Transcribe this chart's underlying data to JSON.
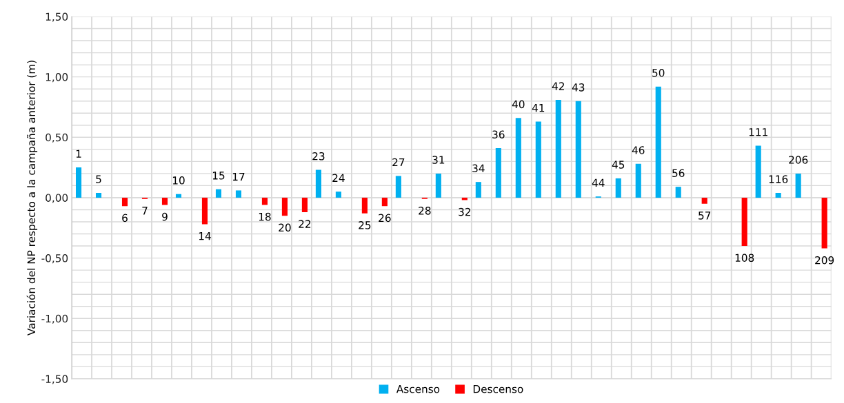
{
  "chart_data": {
    "type": "bar",
    "ylabel": "Variación del NP respecto a la campaña anterior (m)",
    "categories": [
      "1",
      "5",
      "6",
      "7",
      "9",
      "10",
      "14",
      "15",
      "17",
      "18",
      "20",
      "22",
      "23",
      "24",
      "25",
      "26",
      "27",
      "28",
      "31",
      "32",
      "34",
      "36",
      "40",
      "41",
      "42",
      "43",
      "44",
      "45",
      "46",
      "50",
      "56",
      "57",
      null,
      "108",
      "111",
      "116",
      "206",
      "209"
    ],
    "series": [
      {
        "name": "Ascenso",
        "color": "#00b0f0",
        "values": [
          0.25,
          0.04,
          null,
          null,
          null,
          0.03,
          null,
          0.07,
          0.06,
          null,
          null,
          null,
          0.23,
          0.05,
          null,
          null,
          0.18,
          null,
          0.2,
          null,
          0.13,
          0.41,
          0.66,
          0.63,
          0.81,
          0.8,
          0.01,
          0.16,
          0.28,
          0.92,
          0.09,
          null,
          null,
          null,
          0.43,
          0.04,
          0.2,
          null
        ]
      },
      {
        "name": "Descenso",
        "color": "#ff0000",
        "values": [
          null,
          null,
          -0.07,
          -0.01,
          -0.06,
          null,
          -0.22,
          null,
          null,
          -0.06,
          -0.15,
          -0.12,
          null,
          null,
          -0.13,
          -0.07,
          null,
          -0.01,
          null,
          -0.02,
          null,
          null,
          null,
          null,
          null,
          null,
          null,
          null,
          null,
          null,
          null,
          -0.05,
          null,
          -0.4,
          null,
          null,
          null,
          -0.42
        ]
      }
    ],
    "ylim": [
      -1.5,
      1.5
    ],
    "yticks": [
      {
        "value": -1.5,
        "label": "-1,50"
      },
      {
        "value": -1.4,
        "label": null
      },
      {
        "value": -1.3,
        "label": null
      },
      {
        "value": -1.2,
        "label": null
      },
      {
        "value": -1.1,
        "label": null
      },
      {
        "value": -1.0,
        "label": "-1,00"
      },
      {
        "value": -0.9,
        "label": null
      },
      {
        "value": -0.8,
        "label": null
      },
      {
        "value": -0.7,
        "label": null
      },
      {
        "value": -0.6,
        "label": null
      },
      {
        "value": -0.5,
        "label": "-0,50"
      },
      {
        "value": -0.4,
        "label": null
      },
      {
        "value": -0.3,
        "label": null
      },
      {
        "value": -0.2,
        "label": null
      },
      {
        "value": -0.1,
        "label": null
      },
      {
        "value": 0,
        "label": "0,00"
      },
      {
        "value": 0.1,
        "label": null
      },
      {
        "value": 0.2,
        "label": null
      },
      {
        "value": 0.3,
        "label": null
      },
      {
        "value": 0.4,
        "label": null
      },
      {
        "value": 0.5,
        "label": "0,50"
      },
      {
        "value": 0.6,
        "label": null
      },
      {
        "value": 0.7,
        "label": null
      },
      {
        "value": 0.8,
        "label": null
      },
      {
        "value": 0.9,
        "label": null
      },
      {
        "value": 1.0,
        "label": "1,00"
      },
      {
        "value": 1.1,
        "label": null
      },
      {
        "value": 1.2,
        "label": null
      },
      {
        "value": 1.3,
        "label": null
      },
      {
        "value": 1.4,
        "label": null
      },
      {
        "value": 1.5,
        "label": "1,50"
      }
    ],
    "grid": true,
    "legend": "bottom"
  }
}
